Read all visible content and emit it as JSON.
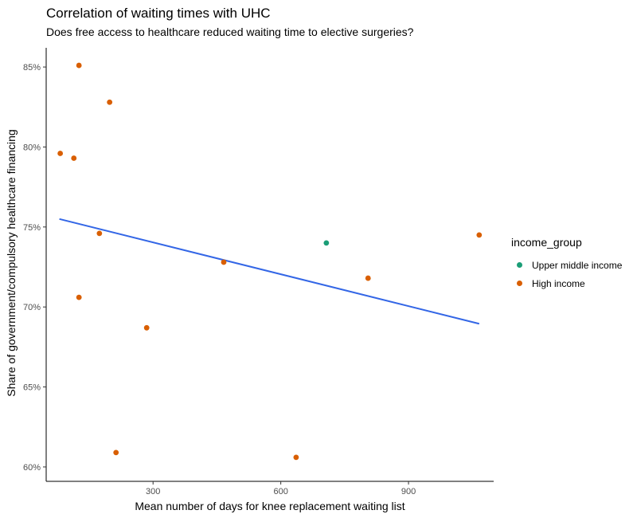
{
  "title": "Correlation of waiting times with UHC",
  "subtitle": "Does free access to healthcare reduced waiting time to elective surgeries?",
  "legend": {
    "title": "income_group",
    "items": [
      {
        "label": "Upper middle income",
        "color": "#1b9e77"
      },
      {
        "label": "High income",
        "color": "#d95f02"
      }
    ]
  },
  "chart_data": {
    "type": "scatter",
    "xlabel": "Mean number of days for knee replacement waiting list",
    "ylabel": "Share of government/compulsory healthcare financing",
    "xlim": [
      49,
      1100
    ],
    "ylim": [
      59.1,
      86.2
    ],
    "x_ticks": [
      300,
      600,
      900
    ],
    "x_tick_labels": [
      "300",
      "600",
      "900"
    ],
    "y_ticks": [
      60,
      65,
      70,
      75,
      80,
      85
    ],
    "y_tick_labels": [
      "60%",
      "65%",
      "70%",
      "75%",
      "80%",
      "85%"
    ],
    "grid": false,
    "legend_position": "right",
    "series": [
      {
        "name": "Upper middle income",
        "color": "#1b9e77",
        "points": [
          {
            "x": 707,
            "y": 74.0
          }
        ]
      },
      {
        "name": "High income",
        "color": "#d95f02",
        "points": [
          {
            "x": 82,
            "y": 79.6
          },
          {
            "x": 114,
            "y": 79.3
          },
          {
            "x": 126,
            "y": 85.1
          },
          {
            "x": 126,
            "y": 70.6
          },
          {
            "x": 174,
            "y": 74.6
          },
          {
            "x": 198,
            "y": 82.8
          },
          {
            "x": 213,
            "y": 60.9
          },
          {
            "x": 285,
            "y": 68.7
          },
          {
            "x": 466,
            "y": 72.8
          },
          {
            "x": 636,
            "y": 60.6
          },
          {
            "x": 805,
            "y": 71.8
          },
          {
            "x": 1066,
            "y": 74.5
          }
        ]
      }
    ],
    "trendline": {
      "color": "#3366e6",
      "x": [
        80,
        1066
      ],
      "y": [
        75.5,
        68.95
      ]
    }
  }
}
